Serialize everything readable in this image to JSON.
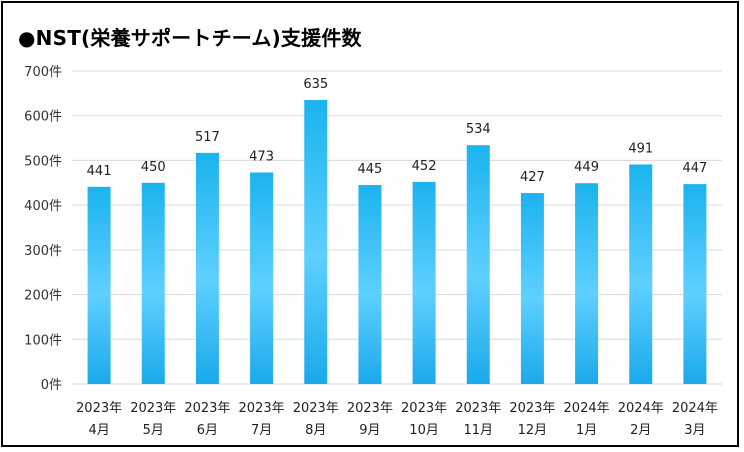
{
  "chart_data": {
    "type": "bar",
    "title": "●NST(栄養サポートチーム)支援件数",
    "categories": [
      [
        "2023年",
        "4月"
      ],
      [
        "2023年",
        "5月"
      ],
      [
        "2023年",
        "6月"
      ],
      [
        "2023年",
        "7月"
      ],
      [
        "2023年",
        "8月"
      ],
      [
        "2023年",
        "9月"
      ],
      [
        "2023年",
        "10月"
      ],
      [
        "2023年",
        "11月"
      ],
      [
        "2023年",
        "12月"
      ],
      [
        "2024年",
        "1月"
      ],
      [
        "2024年",
        "2月"
      ],
      [
        "2024年",
        "3月"
      ]
    ],
    "values": [
      441,
      450,
      517,
      473,
      635,
      445,
      452,
      534,
      427,
      449,
      491,
      447
    ],
    "yticks": [
      "0件",
      "100件",
      "200件",
      "300件",
      "400件",
      "500件",
      "600件",
      "700件"
    ],
    "ylim": [
      0,
      700
    ],
    "grid": true,
    "legend": "none",
    "colors": {
      "bar_top": "#1bb3ee",
      "bar_mid": "#5fd0ff",
      "bar_bottom": "#1aa9ea",
      "grid": "#d9d9d9"
    }
  }
}
